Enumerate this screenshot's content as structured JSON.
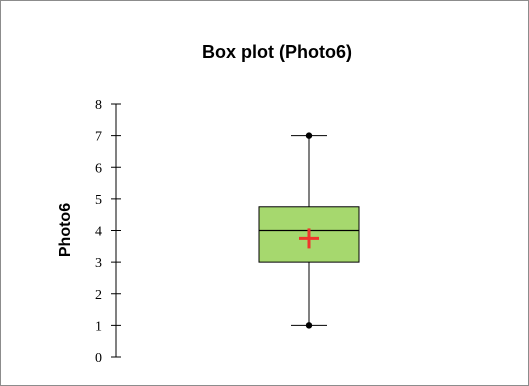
{
  "chart_data": {
    "type": "box",
    "title": "Box plot (Photo6)",
    "xlabel": "",
    "ylabel": "Photo6",
    "ylim": [
      0,
      8
    ],
    "yticks": [
      "0",
      "1",
      "2",
      "3",
      "4",
      "5",
      "6",
      "7",
      "8"
    ],
    "grid": false,
    "series": [
      {
        "min": 1,
        "q1": 3,
        "median": 4,
        "q3": 4.75,
        "max": 7,
        "mean": 3.75
      }
    ],
    "colors": {
      "box_fill": "#a6d86e",
      "box_stroke": "#000000",
      "mean_marker": "#f0342c"
    }
  }
}
